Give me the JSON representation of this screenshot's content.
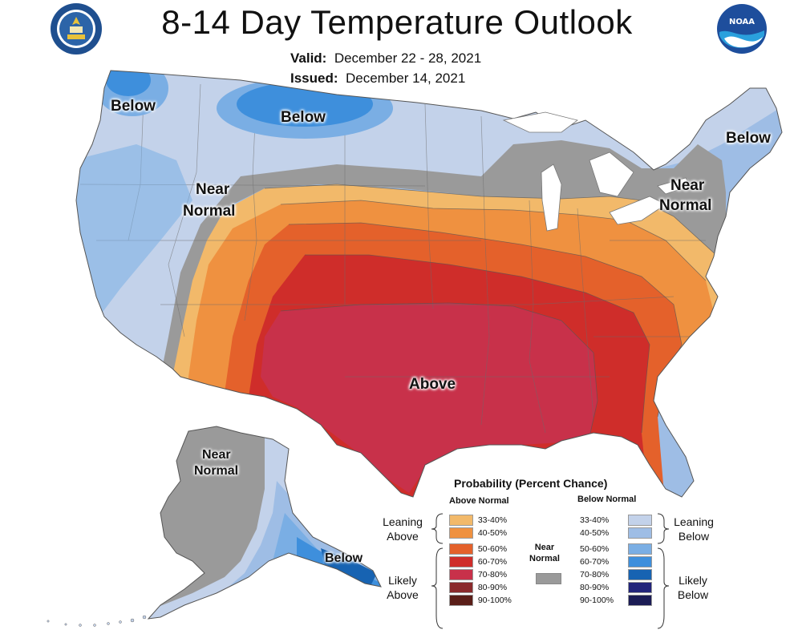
{
  "header": {
    "title": "8-14 Day Temperature Outlook",
    "valid_label": "Valid:",
    "valid_value": "December 22 - 28, 2021",
    "issued_label": "Issued:",
    "issued_value": "December 14, 2021",
    "left_logo_text": "DEPARTMENT OF COMMERCE · UNITED STATES OF AMERICA",
    "right_logo_text": "NOAA"
  },
  "map": {
    "labels": {
      "below_west": "Below",
      "below_north": "Below",
      "near_normal_west_1": "Near",
      "near_normal_west_2": "Normal",
      "below_ne": "Below",
      "near_normal_ne_1": "Near",
      "near_normal_ne_2": "Normal",
      "above": "Above",
      "ak_near_1": "Near",
      "ak_near_2": "Normal",
      "ak_below": "Below"
    }
  },
  "legend": {
    "title": "Probability (Percent Chance)",
    "above_header": "Above Normal",
    "below_header": "Below Normal",
    "leaning_above": [
      "Leaning",
      "Above"
    ],
    "likely_above": [
      "Likely",
      "Above"
    ],
    "leaning_below": [
      "Leaning",
      "Below"
    ],
    "likely_below": [
      "Likely",
      "Below"
    ],
    "near_normal": [
      "Near",
      "Normal"
    ],
    "above_rows": [
      {
        "pct": "33-40%",
        "color": "#f2b96a"
      },
      {
        "pct": "40-50%",
        "color": "#ef9140"
      },
      {
        "pct": "50-60%",
        "color": "#e4612b"
      },
      {
        "pct": "60-70%",
        "color": "#cf2d2a"
      },
      {
        "pct": "70-80%",
        "color": "#c8314a"
      },
      {
        "pct": "80-90%",
        "color": "#8a2a2c"
      },
      {
        "pct": "90-100%",
        "color": "#5a1e18"
      }
    ],
    "below_rows": [
      {
        "pct": "33-40%",
        "color": "#c3d2ea"
      },
      {
        "pct": "40-50%",
        "color": "#9ebde5"
      },
      {
        "pct": "50-60%",
        "color": "#7aaee4"
      },
      {
        "pct": "60-70%",
        "color": "#3e8fdc"
      },
      {
        "pct": "70-80%",
        "color": "#1763b2"
      },
      {
        "pct": "80-90%",
        "color": "#22247a"
      },
      {
        "pct": "90-100%",
        "color": "#1b1c55"
      }
    ],
    "near_normal_color": "#9a9a9a"
  }
}
